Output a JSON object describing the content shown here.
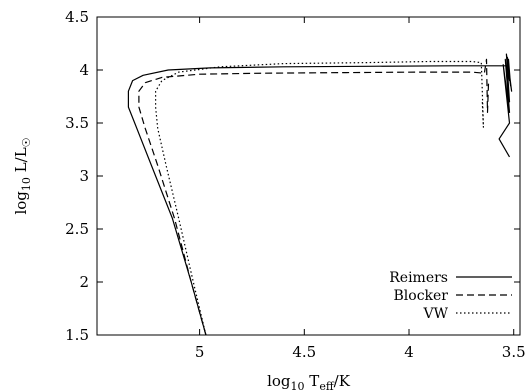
{
  "chart_data": {
    "type": "line",
    "title": "",
    "xlabel": {
      "base": "log",
      "sub": "10",
      "mid": " T",
      "sub2": "eff",
      "rest": "/K"
    },
    "ylabel": {
      "base": "log",
      "sub": "10",
      "mid": " L/L",
      "sub2": "☉"
    },
    "xlim": [
      5.49,
      3.47
    ],
    "ylim": [
      1.5,
      4.5
    ],
    "x_reversed": true,
    "x_ticks": [
      5,
      4.5,
      4,
      3.5
    ],
    "x_tick_labels": [
      "5",
      "4.5",
      "4",
      "3.5"
    ],
    "y_ticks": [
      1.5,
      2,
      2.5,
      3,
      3.5,
      4,
      4.5
    ],
    "y_tick_labels": [
      "1.5",
      "2",
      "2.5",
      "3",
      "3.5",
      "4",
      "4.5"
    ],
    "grid": false,
    "legend_position": "bottom-right",
    "series": [
      {
        "name": "Reimers",
        "style": "solid",
        "x": [
          4.97,
          5.04,
          5.13,
          5.23,
          5.31,
          5.34,
          5.34,
          5.32,
          5.27,
          5.15,
          4.95,
          4.6,
          4.2,
          3.8,
          3.6,
          3.53,
          3.52,
          3.525,
          3.515,
          3.53,
          3.51,
          3.535,
          3.52,
          3.54,
          3.52,
          3.55,
          3.52,
          3.57,
          3.52
        ],
        "y": [
          1.5,
          2.0,
          2.6,
          3.1,
          3.5,
          3.65,
          3.8,
          3.9,
          3.95,
          4.0,
          4.02,
          4.03,
          4.035,
          4.04,
          4.04,
          4.04,
          3.9,
          4.1,
          3.85,
          4.12,
          3.8,
          4.15,
          3.7,
          4.1,
          3.6,
          4.05,
          3.5,
          3.35,
          3.18
        ]
      },
      {
        "name": "Blocker",
        "style": "dashed",
        "x": [
          4.97,
          5.04,
          5.12,
          5.2,
          5.26,
          5.29,
          5.29,
          5.26,
          5.18,
          5.0,
          4.7,
          4.3,
          3.95,
          3.7,
          3.64,
          3.63,
          3.625,
          3.62
        ],
        "y": [
          1.5,
          2.0,
          2.6,
          3.1,
          3.45,
          3.65,
          3.8,
          3.88,
          3.93,
          3.96,
          3.97,
          3.975,
          3.98,
          3.98,
          3.97,
          4.1,
          3.6,
          3.9
        ]
      },
      {
        "name": "VW",
        "style": "dotted",
        "x": [
          4.97,
          5.03,
          5.1,
          5.16,
          5.2,
          5.21,
          5.21,
          5.18,
          5.1,
          4.9,
          4.6,
          4.2,
          3.9,
          3.7,
          3.655,
          3.65,
          3.645,
          3.65
        ],
        "y": [
          1.5,
          2.0,
          2.6,
          3.1,
          3.45,
          3.65,
          3.8,
          3.9,
          3.98,
          4.03,
          4.06,
          4.07,
          4.08,
          4.08,
          4.07,
          3.8,
          3.46,
          3.7
        ]
      }
    ]
  }
}
